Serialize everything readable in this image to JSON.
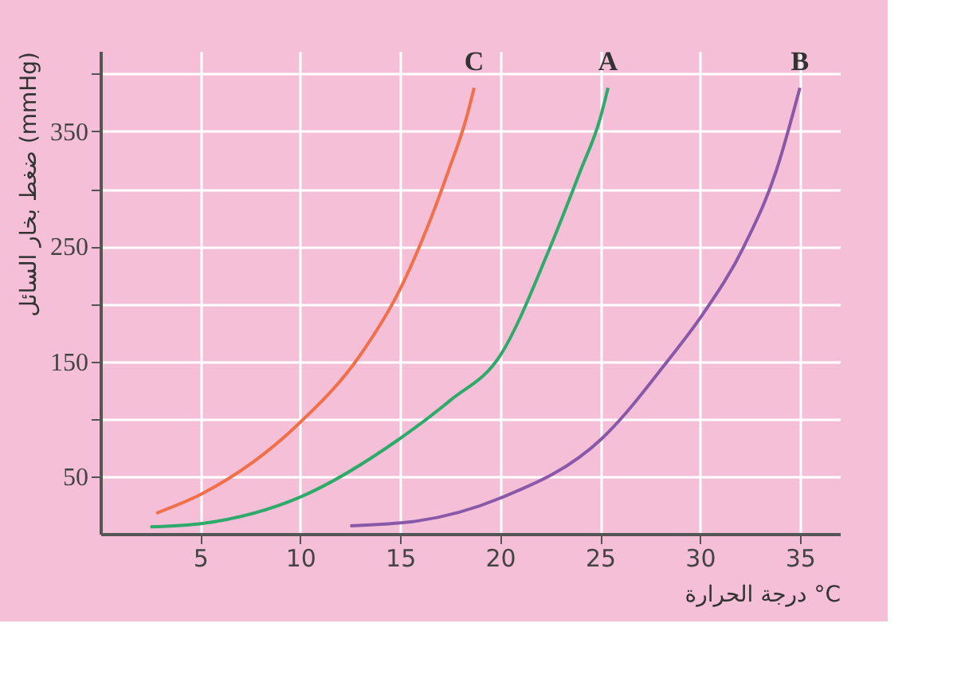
{
  "chart_data": {
    "type": "line",
    "xlabel": "درجة الحرارة °C",
    "ylabel": "ضغط بخار السائل (mmHg)",
    "xlim": [
      0,
      37
    ],
    "ylim": [
      0,
      420
    ],
    "xticks": [
      5,
      10,
      15,
      20,
      25,
      30,
      35
    ],
    "yticks": [
      50,
      {
        "value": 100,
        "label": null
      },
      150,
      {
        "value": 200,
        "label": null
      },
      250,
      {
        "value": 300,
        "label": null
      },
      350,
      {
        "value": 400,
        "label": null
      }
    ],
    "grid": true,
    "legend": false,
    "marker": "none",
    "line_style": "solid",
    "series": [
      {
        "name": "C",
        "color": "#f0704a",
        "x": [
          2.8,
          5.1,
          10,
          12.9,
          15,
          16.3,
          17.4,
          18.3,
          18.7
        ],
        "values": [
          18,
          35,
          97,
          153,
          213,
          264,
          315,
          361,
          388
        ]
      },
      {
        "name": "A",
        "color": "#2eaa6a",
        "x": [
          2.5,
          5.1,
          10,
          15,
          17.5,
          20,
          22.4,
          24,
          25,
          25.4
        ],
        "values": [
          6,
          9,
          32,
          83,
          116,
          155,
          245,
          315,
          361,
          388
        ]
      },
      {
        "name": "B",
        "color": "#8a58a8",
        "x": [
          12.5,
          15.8,
          20,
          25.1,
          28.5,
          30.1,
          32.2,
          33.8,
          35
        ],
        "values": [
          7,
          11,
          31,
          83,
          153,
          190,
          250,
          315,
          388
        ]
      }
    ]
  }
}
